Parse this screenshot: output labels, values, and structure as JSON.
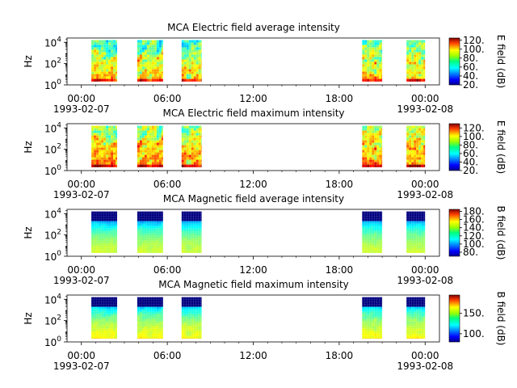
{
  "chart_data": [
    {
      "type": "heatmap",
      "title": "MCA  Electric field average intensity",
      "ylabel": "Hz",
      "y_scale": "log",
      "ylim_exponent": [
        0,
        4.4
      ],
      "y_ticks": [
        {
          "base": "10",
          "exp": "0"
        },
        {
          "base": "10",
          "exp": "2"
        },
        {
          "base": "10",
          "exp": "4"
        }
      ],
      "x_range_hours": [
        -1,
        25
      ],
      "x_ticks": [
        {
          "hour": 0,
          "label": "00:00",
          "date": "1993-02-07"
        },
        {
          "hour": 6,
          "label": "06:00",
          "date": ""
        },
        {
          "hour": 12,
          "label": "12:00",
          "date": ""
        },
        {
          "hour": 18,
          "label": "18:00",
          "date": ""
        },
        {
          "hour": 24,
          "label": "00:00",
          "date": "1993-02-08"
        }
      ],
      "data_blocks_hours": [
        [
          0.7,
          2.5
        ],
        [
          3.9,
          5.7
        ],
        [
          7.0,
          8.4
        ],
        [
          19.6,
          21.0
        ],
        [
          22.7,
          24.0
        ]
      ],
      "data_freq_exponent_range": [
        0.3,
        4.2
      ],
      "colorbar": {
        "label": "E field (dB)",
        "range": [
          20,
          125
        ],
        "ticks": [
          "20.",
          "40.",
          "60.",
          "80.",
          "100.",
          "120."
        ],
        "tick_values": [
          20,
          40,
          60,
          80,
          100,
          120
        ]
      },
      "pattern": "noisy-electric"
    },
    {
      "type": "heatmap",
      "title": "MCA  Electric field maximum intensity",
      "ylabel": "Hz",
      "y_scale": "log",
      "ylim_exponent": [
        0,
        4.4
      ],
      "y_ticks": [
        {
          "base": "10",
          "exp": "0"
        },
        {
          "base": "10",
          "exp": "2"
        },
        {
          "base": "10",
          "exp": "4"
        }
      ],
      "x_range_hours": [
        -1,
        25
      ],
      "x_ticks": [
        {
          "hour": 0,
          "label": "00:00",
          "date": "1993-02-07"
        },
        {
          "hour": 6,
          "label": "06:00",
          "date": ""
        },
        {
          "hour": 12,
          "label": "12:00",
          "date": ""
        },
        {
          "hour": 18,
          "label": "18:00",
          "date": ""
        },
        {
          "hour": 24,
          "label": "00:00",
          "date": "1993-02-08"
        }
      ],
      "data_blocks_hours": [
        [
          0.7,
          2.5
        ],
        [
          3.9,
          5.7
        ],
        [
          7.0,
          8.4
        ],
        [
          19.6,
          21.0
        ],
        [
          22.7,
          24.0
        ]
      ],
      "data_freq_exponent_range": [
        0.3,
        4.2
      ],
      "colorbar": {
        "label": "E field (dB)",
        "range": [
          20,
          130
        ],
        "ticks": [
          "20.",
          "40.",
          "60.",
          "80.",
          "100.",
          "120."
        ],
        "tick_values": [
          20,
          40,
          60,
          80,
          100,
          120
        ]
      },
      "pattern": "noisy-electric-max"
    },
    {
      "type": "heatmap",
      "title": "MCA  Magnetic field average intensity",
      "ylabel": "Hz",
      "y_scale": "log",
      "ylim_exponent": [
        0,
        4.4
      ],
      "y_ticks": [
        {
          "base": "10",
          "exp": "0"
        },
        {
          "base": "10",
          "exp": "2"
        },
        {
          "base": "10",
          "exp": "4"
        }
      ],
      "x_range_hours": [
        -1,
        25
      ],
      "x_ticks": [
        {
          "hour": 0,
          "label": "00:00",
          "date": "1993-02-07"
        },
        {
          "hour": 6,
          "label": "06:00",
          "date": ""
        },
        {
          "hour": 12,
          "label": "12:00",
          "date": ""
        },
        {
          "hour": 18,
          "label": "18:00",
          "date": ""
        },
        {
          "hour": 24,
          "label": "00:00",
          "date": "1993-02-08"
        }
      ],
      "data_blocks_hours": [
        [
          0.7,
          2.5
        ],
        [
          3.9,
          5.7
        ],
        [
          7.0,
          8.4
        ],
        [
          19.6,
          21.0
        ],
        [
          22.7,
          24.0
        ]
      ],
      "data_freq_exponent_range": [
        0.3,
        4.2
      ],
      "colorbar": {
        "label": "B field (dB)",
        "range": [
          70,
          185
        ],
        "ticks": [
          "80.",
          "100.",
          "120.",
          "140.",
          "160.",
          "180."
        ],
        "tick_values": [
          80,
          100,
          120,
          140,
          160,
          180
        ]
      },
      "pattern": "smooth-magnetic"
    },
    {
      "type": "heatmap",
      "title": "MCA  Magnetic field maximum intensity",
      "ylabel": "Hz",
      "y_scale": "log",
      "ylim_exponent": [
        0,
        4.4
      ],
      "y_ticks": [
        {
          "base": "10",
          "exp": "0"
        },
        {
          "base": "10",
          "exp": "2"
        },
        {
          "base": "10",
          "exp": "4"
        }
      ],
      "x_range_hours": [
        -1,
        25
      ],
      "x_ticks": [
        {
          "hour": 0,
          "label": "00:00",
          "date": "1993-02-07"
        },
        {
          "hour": 6,
          "label": "06:00",
          "date": ""
        },
        {
          "hour": 12,
          "label": "12:00",
          "date": ""
        },
        {
          "hour": 18,
          "label": "18:00",
          "date": ""
        },
        {
          "hour": 24,
          "label": "00:00",
          "date": "1993-02-08"
        }
      ],
      "data_blocks_hours": [
        [
          0.7,
          2.5
        ],
        [
          3.9,
          5.7
        ],
        [
          7.0,
          8.4
        ],
        [
          19.6,
          21.0
        ],
        [
          22.7,
          24.0
        ]
      ],
      "data_freq_exponent_range": [
        0.3,
        4.2
      ],
      "colorbar": {
        "label": "B field (dB)",
        "range": [
          80,
          195
        ],
        "ticks": [
          "100.",
          "150."
        ],
        "tick_values": [
          100,
          150
        ]
      },
      "pattern": "smooth-magnetic-max"
    }
  ]
}
